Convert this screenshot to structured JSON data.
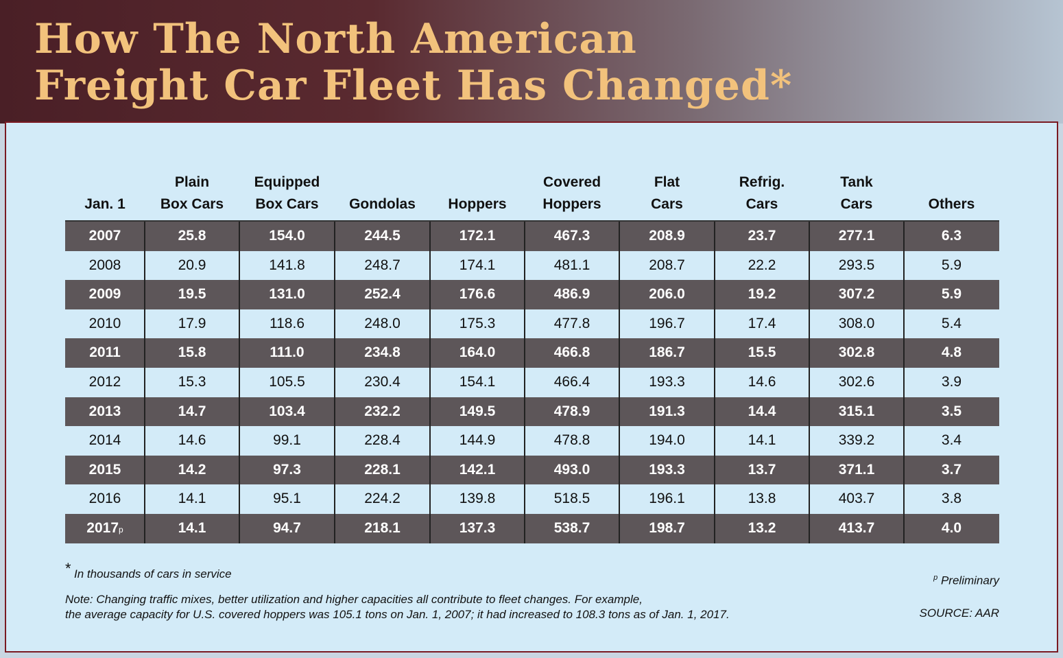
{
  "header": {
    "title_lines": [
      "How The North American",
      "Freight Car Fleet Has Changed*"
    ]
  },
  "table": {
    "columns": [
      [
        "Jan. 1"
      ],
      [
        "Plain",
        "Box Cars"
      ],
      [
        "Equipped",
        "Box Cars"
      ],
      [
        "Gondolas"
      ],
      [
        "Hoppers"
      ],
      [
        "Covered",
        "Hoppers"
      ],
      [
        "Flat",
        "Cars"
      ],
      [
        "Refrig.",
        "Cars"
      ],
      [
        "Tank",
        "Cars"
      ],
      [
        "Others"
      ]
    ],
    "rows": [
      [
        "2007",
        "25.8",
        "154.0",
        "244.5",
        "172.1",
        "467.3",
        "208.9",
        "23.7",
        "277.1",
        "6.3"
      ],
      [
        "2008",
        "20.9",
        "141.8",
        "248.7",
        "174.1",
        "481.1",
        "208.7",
        "22.2",
        "293.5",
        "5.9"
      ],
      [
        "2009",
        "19.5",
        "131.0",
        "252.4",
        "176.6",
        "486.9",
        "206.0",
        "19.2",
        "307.2",
        "5.9"
      ],
      [
        "2010",
        "17.9",
        "118.6",
        "248.0",
        "175.3",
        "477.8",
        "196.7",
        "17.4",
        "308.0",
        "5.4"
      ],
      [
        "2011",
        "15.8",
        "111.0",
        "234.8",
        "164.0",
        "466.8",
        "186.7",
        "15.5",
        "302.8",
        "4.8"
      ],
      [
        "2012",
        "15.3",
        "105.5",
        "230.4",
        "154.1",
        "466.4",
        "193.3",
        "14.6",
        "302.6",
        "3.9"
      ],
      [
        "2013",
        "14.7",
        "103.4",
        "232.2",
        "149.5",
        "478.9",
        "191.3",
        "14.4",
        "315.1",
        "3.5"
      ],
      [
        "2014",
        "14.6",
        "99.1",
        "228.4",
        "144.9",
        "478.8",
        "194.0",
        "14.1",
        "339.2",
        "3.4"
      ],
      [
        "2015",
        "14.2",
        "97.3",
        "228.1",
        "142.1",
        "493.0",
        "193.3",
        "13.7",
        "371.1",
        "3.7"
      ],
      [
        "2016",
        "14.1",
        "95.1",
        "224.2",
        "139.8",
        "518.5",
        "196.1",
        "13.8",
        "403.7",
        "3.8"
      ],
      [
        "2017",
        "14.1",
        "94.7",
        "218.1",
        "137.3",
        "538.7",
        "198.7",
        "13.2",
        "413.7",
        "4.0"
      ]
    ],
    "preliminary_mark": "p"
  },
  "footer": {
    "asterisk": "*",
    "units_note": "In thousands of cars in service",
    "preliminary_mark": "p",
    "preliminary_label": "Preliminary",
    "note_lines": [
      "Note: Changing traffic mixes, better utilization and higher capacities all contribute to fleet changes. For example,",
      "the average capacity for U.S. covered hoppers was 105.1 tons on Jan. 1, 2007; it had increased to 108.3 tons as of Jan. 1, 2017."
    ],
    "source": "SOURCE: AAR"
  }
}
